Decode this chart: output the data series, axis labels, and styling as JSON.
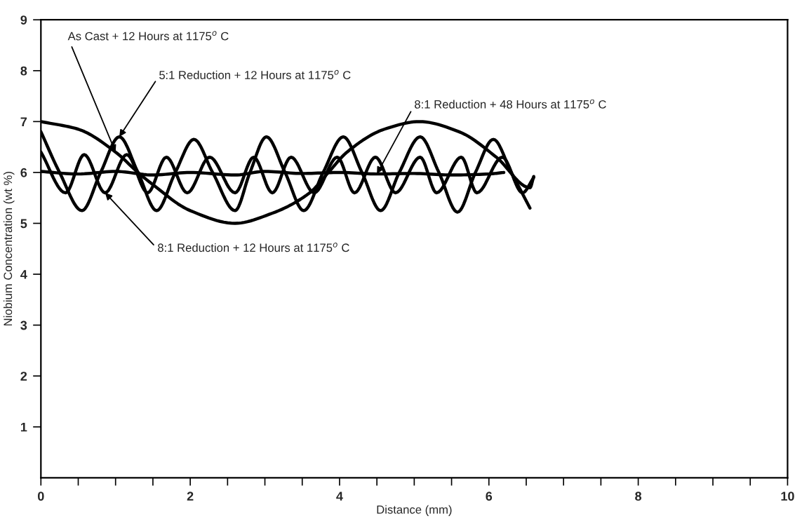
{
  "chart_data": {
    "type": "line",
    "xlabel": "Distance (mm)",
    "ylabel": "Niobium Concentration (wt %)",
    "xlim": [
      0,
      10
    ],
    "ylim": [
      0,
      9
    ],
    "xticks": [
      0,
      {
        "value": 0.5,
        "label": null
      },
      {
        "value": 1,
        "label": null
      },
      {
        "value": 1.5,
        "label": null
      },
      2,
      {
        "value": 2.5,
        "label": null
      },
      {
        "value": 3,
        "label": null
      },
      {
        "value": 3.5,
        "label": null
      },
      4,
      {
        "value": 4.5,
        "label": null
      },
      {
        "value": 5,
        "label": null
      },
      {
        "value": 5.5,
        "label": null
      },
      6,
      {
        "value": 6.5,
        "label": null
      },
      {
        "value": 7,
        "label": null
      },
      {
        "value": 7.5,
        "label": null
      },
      8,
      {
        "value": 8.5,
        "label": null
      },
      {
        "value": 9,
        "label": null
      },
      {
        "value": 9.5,
        "label": null
      },
      10
    ],
    "yticks": [
      1,
      2,
      3,
      4,
      5,
      6,
      7,
      8,
      9
    ],
    "grid": false,
    "legend": false,
    "marker": "none",
    "line_style": "solid",
    "series": [
      {
        "name": "As Cast + 12 Hours at 1175$^{o}$ C",
        "color": "#000000",
        "x": [
          0,
          0.5,
          1.0,
          1.3,
          1.5,
          2.0,
          2.6,
          3.1,
          3.6,
          3.85,
          4.1,
          4.6,
          5.07,
          5.6,
          6.1,
          6.55,
          6.6
        ],
        "values": [
          7.0,
          6.85,
          6.4,
          6.0,
          5.76,
          5.25,
          5.0,
          5.2,
          5.6,
          6.0,
          6.4,
          6.85,
          7.0,
          6.8,
          6.3,
          5.7,
          5.92
        ]
      },
      {
        "name": "5:1 Reduction + 12 Hours at 1175$^{o}$ C",
        "color": "#000000",
        "x": [
          0,
          0.25,
          0.55,
          0.8,
          1.05,
          1.3,
          1.55,
          1.8,
          2.05,
          2.3,
          2.6,
          2.8,
          3.02,
          3.27,
          3.52,
          3.78,
          4.05,
          4.3,
          4.55,
          4.8,
          5.08,
          5.33,
          5.58,
          5.82,
          6.06,
          6.3,
          6.55
        ],
        "values": [
          6.8,
          6.0,
          5.25,
          6.0,
          6.7,
          6.0,
          5.25,
          6.0,
          6.65,
          6.0,
          5.25,
          6.0,
          6.7,
          6.0,
          5.25,
          6.0,
          6.7,
          6.0,
          5.25,
          6.0,
          6.7,
          6.0,
          5.22,
          6.0,
          6.65,
          6.0,
          5.3
        ]
      },
      {
        "name": "8:1 Reduction + 48 Hours at 1175$^{o}$ C",
        "color": "#000000",
        "x": [
          0,
          0.5,
          1.0,
          1.5,
          2.0,
          2.6,
          3.0,
          3.5,
          4.0,
          4.5,
          5.0,
          5.5,
          6.0,
          6.2
        ],
        "values": [
          6.02,
          5.97,
          6.02,
          5.95,
          6.0,
          5.95,
          6.02,
          5.98,
          6.0,
          5.97,
          5.98,
          5.95,
          5.97,
          6.0
        ]
      },
      {
        "name": "8:1 Reduction + 12 Hours at 1175$^{o}$ C",
        "color": "#000000",
        "x": [
          0,
          0.33,
          0.58,
          0.86,
          1.15,
          1.43,
          1.68,
          1.96,
          2.26,
          2.6,
          2.85,
          3.1,
          3.35,
          3.66,
          3.97,
          4.2,
          4.48,
          4.75,
          5.08,
          5.3,
          5.63,
          5.84,
          6.18,
          6.45,
          6.6
        ],
        "values": [
          6.4,
          5.6,
          6.35,
          5.6,
          6.35,
          5.6,
          6.3,
          5.6,
          6.3,
          5.6,
          6.3,
          5.6,
          6.3,
          5.6,
          6.3,
          5.6,
          6.3,
          5.6,
          6.3,
          5.6,
          6.3,
          5.6,
          6.3,
          5.6,
          5.9
        ]
      }
    ]
  }
}
